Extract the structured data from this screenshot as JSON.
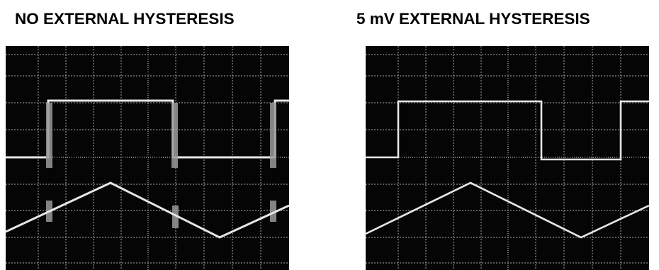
{
  "titles": {
    "left": "NO EXTERNAL HYSTERESIS",
    "right": "5 mV  EXTERNAL HYSTERESIS"
  },
  "colors": {
    "screen_background": "#050505",
    "graticule": "#8c8c8c",
    "trace": "#e6e6e6",
    "title_text": "#000000"
  },
  "scopes": [
    {
      "id": "no-external-hysteresis",
      "output_trace": "square wave with oscillation bursts at each transition",
      "input_trace": "triangle wave",
      "transition_chatter": true
    },
    {
      "id": "5mv-external-hysteresis",
      "output_trace": "clean square wave",
      "input_trace": "triangle wave",
      "transition_chatter": false
    }
  ]
}
